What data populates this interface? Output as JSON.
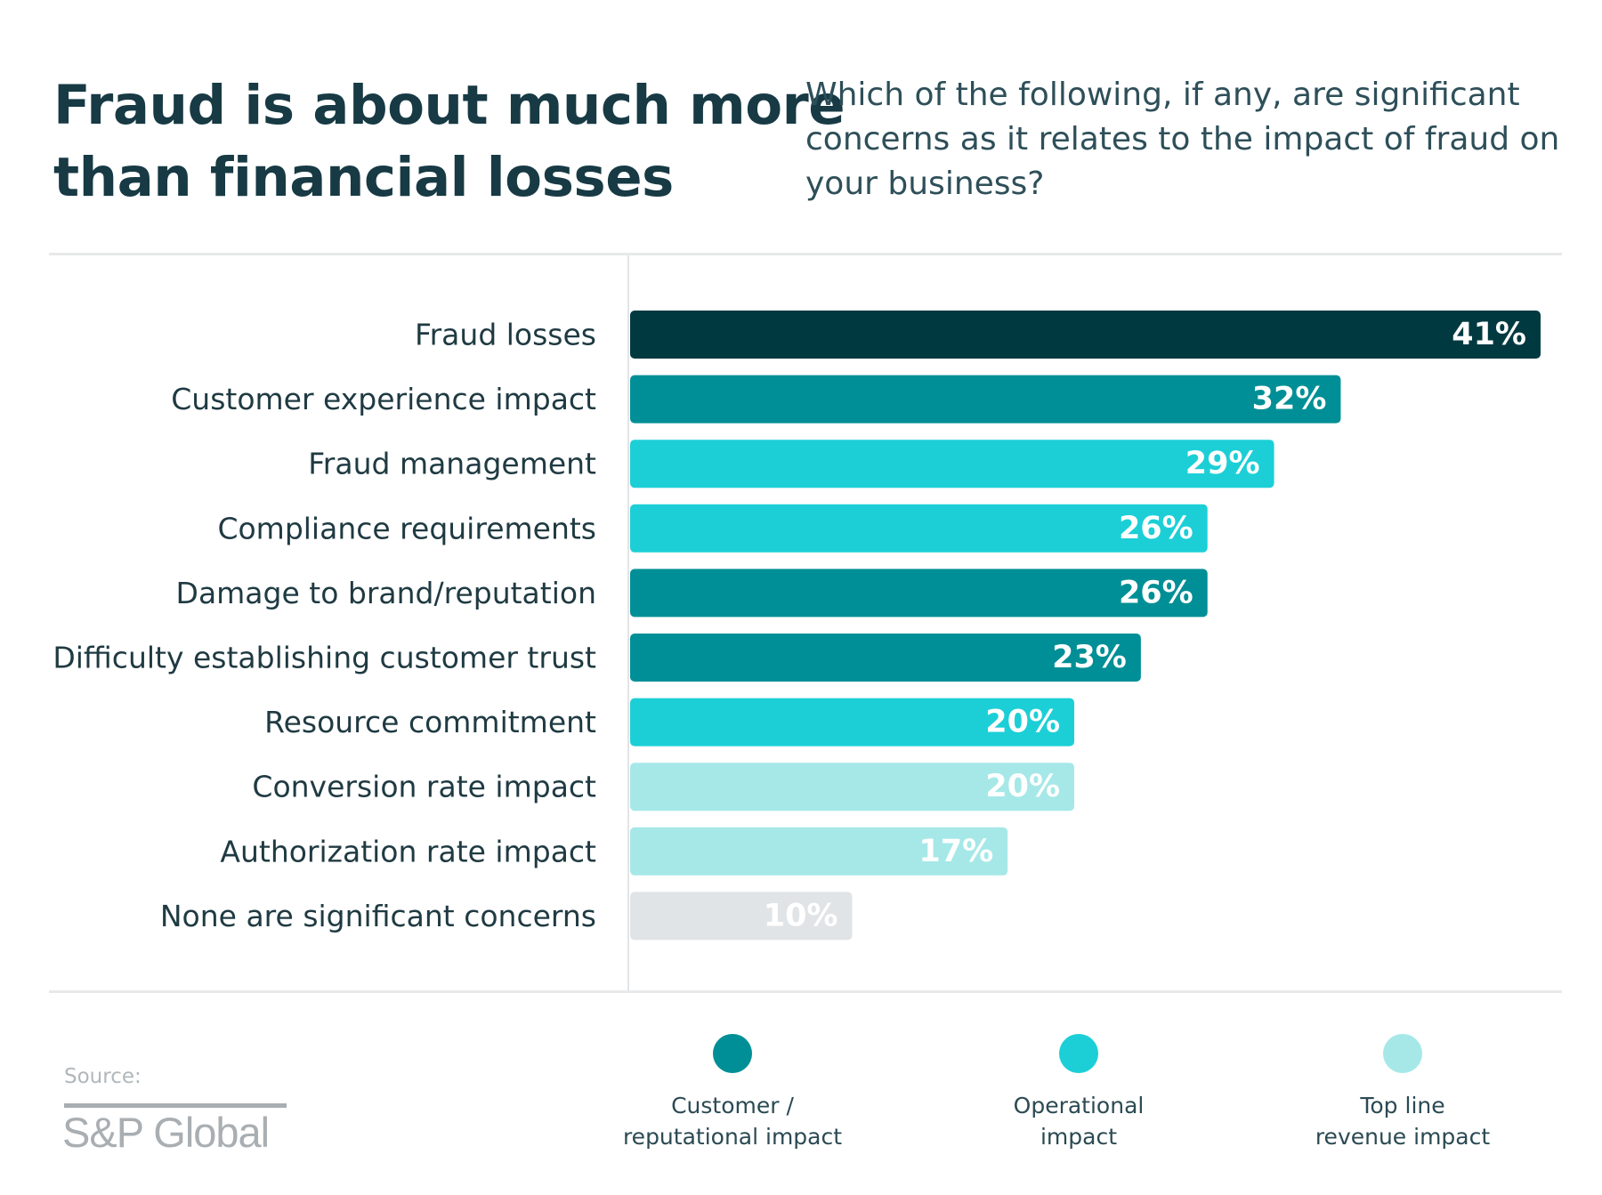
{
  "title": {
    "line1": "Fraud is about much more",
    "line2": "than financial losses"
  },
  "question": {
    "line1": "Which of the following, if any, are significant",
    "line2": "concerns as it relates to the impact of fraud on",
    "line3": "your business?"
  },
  "source": {
    "label": "Source:",
    "name": "S&P Global"
  },
  "colors": {
    "dark": "#003a40",
    "customer_reputational": "#008f96",
    "operational": "#1ccfd7",
    "top_line_revenue": "#a6e8e8",
    "none": "#e1e4e6"
  },
  "legend": [
    {
      "line1": "Customer /",
      "line2": "reputational impact",
      "color": "#008f96"
    },
    {
      "line1": "Operational",
      "line2": "impact",
      "color": "#1ccfd7"
    },
    {
      "line1": "Top line",
      "line2": "revenue impact",
      "color": "#a6e8e8"
    }
  ],
  "chart_data": {
    "type": "bar",
    "orientation": "horizontal",
    "title": "Fraud is about much more than financial losses",
    "subtitle": "Which of the following, if any, are significant concerns as it relates to the impact of fraud on your business?",
    "categories": [
      "Fraud losses",
      "Customer experience impact",
      "Fraud management",
      "Compliance requirements",
      "Damage to brand/reputation",
      "Difficulty establishing customer trust",
      "Resource commitment",
      "Conversion rate impact",
      "Authorization rate impact",
      "None are significant concerns"
    ],
    "values": [
      41,
      32,
      29,
      26,
      26,
      23,
      20,
      20,
      17,
      10
    ],
    "value_labels": [
      "41%",
      "32%",
      "29%",
      "26%",
      "26%",
      "23%",
      "20%",
      "20%",
      "17%",
      "10%"
    ],
    "groups": [
      "Fraud losses",
      "Customer / reputational impact",
      "Operational impact",
      "Operational impact",
      "Customer / reputational impact",
      "Customer / reputational impact",
      "Operational impact",
      "Top line revenue impact",
      "Top line revenue impact",
      "None"
    ],
    "bar_colors": [
      "#003a40",
      "#008f96",
      "#1ccfd7",
      "#1ccfd7",
      "#008f96",
      "#008f96",
      "#1ccfd7",
      "#a6e8e8",
      "#a6e8e8",
      "#e1e4e6"
    ],
    "xlim": [
      0,
      41
    ],
    "unit": "%",
    "grid": false,
    "legend_position": "bottom"
  }
}
